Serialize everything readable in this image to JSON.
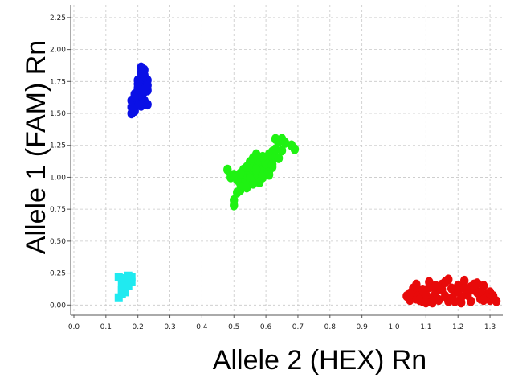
{
  "chart_data": {
    "type": "scatter",
    "title": "",
    "xlabel": "Allele 2 (HEX) Rn",
    "ylabel": "Allele 1 (FAM) Rn",
    "xlim": [
      -0.01,
      1.34
    ],
    "ylim": [
      -0.08,
      2.35
    ],
    "x_ticks": [
      "0.0",
      "0.1",
      "0.2",
      "0.3",
      "0.4",
      "0.5",
      "0.6",
      "0.7",
      "0.8",
      "0.9",
      "1.0",
      "1.1",
      "1.2",
      "1.3"
    ],
    "y_ticks": [
      "0.00",
      "0.25",
      "0.50",
      "0.75",
      "1.00",
      "1.25",
      "1.50",
      "1.75",
      "2.00",
      "2.25"
    ],
    "grid": true,
    "legend": "none",
    "series": [
      {
        "color": "#0a10e6",
        "marker": "circle",
        "x": [
          0.18,
          0.19,
          0.21,
          0.2,
          0.22,
          0.23,
          0.2,
          0.21,
          0.22,
          0.23,
          0.19,
          0.2,
          0.21,
          0.22,
          0.2,
          0.18,
          0.19,
          0.21,
          0.22,
          0.23,
          0.22,
          0.18,
          0.21,
          0.2,
          0.22,
          0.19,
          0.21,
          0.23,
          0.2,
          0.22
        ],
        "y": [
          1.5,
          1.52,
          1.56,
          1.58,
          1.6,
          1.57,
          1.64,
          1.66,
          1.67,
          1.68,
          1.62,
          1.7,
          1.72,
          1.74,
          1.76,
          1.6,
          1.65,
          1.78,
          1.8,
          1.76,
          1.84,
          1.55,
          1.86,
          1.69,
          1.7,
          1.63,
          1.82,
          1.72,
          1.73,
          1.79
        ]
      },
      {
        "color": "#1ff212",
        "marker": "circle",
        "x": [
          0.48,
          0.5,
          0.51,
          0.52,
          0.52,
          0.53,
          0.53,
          0.54,
          0.54,
          0.55,
          0.55,
          0.56,
          0.56,
          0.57,
          0.57,
          0.58,
          0.58,
          0.59,
          0.59,
          0.6,
          0.6,
          0.61,
          0.61,
          0.62,
          0.62,
          0.63,
          0.63,
          0.64,
          0.65,
          0.66,
          0.68,
          0.69,
          0.5,
          0.51,
          0.53,
          0.55,
          0.57,
          0.58,
          0.6,
          0.62,
          0.64,
          0.56,
          0.54,
          0.59,
          0.61,
          0.57,
          0.55,
          0.6,
          0.63,
          0.58,
          0.52,
          0.56,
          0.59,
          0.62,
          0.65,
          0.49,
          0.5,
          0.54,
          0.57,
          0.61
        ],
        "y": [
          1.06,
          0.82,
          0.88,
          0.9,
          0.95,
          0.93,
          1.0,
          0.97,
          1.02,
          1.0,
          1.05,
          1.03,
          1.08,
          1.04,
          1.1,
          1.07,
          1.12,
          1.09,
          1.13,
          1.1,
          1.15,
          1.12,
          1.18,
          1.14,
          1.2,
          1.16,
          1.22,
          1.28,
          1.3,
          1.27,
          1.25,
          1.22,
          0.78,
          0.98,
          1.06,
          1.12,
          1.0,
          0.96,
          1.04,
          1.08,
          1.15,
          1.15,
          0.92,
          1.0,
          1.05,
          1.18,
          0.99,
          1.11,
          1.3,
          1.05,
          1.03,
          0.95,
          1.16,
          1.1,
          1.21,
          1.0,
          1.02,
          1.08,
          1.06,
          1.02
        ]
      },
      {
        "color": "#e80a0a",
        "marker": "circle",
        "x": [
          1.04,
          1.05,
          1.06,
          1.07,
          1.08,
          1.09,
          1.1,
          1.11,
          1.12,
          1.13,
          1.14,
          1.15,
          1.16,
          1.17,
          1.18,
          1.19,
          1.2,
          1.21,
          1.22,
          1.23,
          1.24,
          1.25,
          1.26,
          1.27,
          1.28,
          1.29,
          1.3,
          1.32,
          1.06,
          1.09,
          1.12,
          1.15,
          1.18,
          1.21,
          1.24,
          1.27,
          1.3,
          1.08,
          1.11,
          1.14,
          1.17,
          1.2,
          1.23,
          1.26,
          1.29,
          1.13,
          1.16,
          1.19,
          1.22,
          1.25,
          1.1,
          1.07,
          1.28,
          1.05,
          1.31
        ],
        "y": [
          0.07,
          0.04,
          0.09,
          0.05,
          0.1,
          0.03,
          0.08,
          0.14,
          0.06,
          0.1,
          0.04,
          0.12,
          0.07,
          0.2,
          0.05,
          0.1,
          0.15,
          0.06,
          0.19,
          0.08,
          0.03,
          0.12,
          0.1,
          0.05,
          0.15,
          0.08,
          0.1,
          0.03,
          0.13,
          0.12,
          0.02,
          0.16,
          0.13,
          0.02,
          0.14,
          0.1,
          0.04,
          0.04,
          0.18,
          0.14,
          0.03,
          0.11,
          0.08,
          0.17,
          0.06,
          0.15,
          0.18,
          0.03,
          0.13,
          0.16,
          0.02,
          0.16,
          0.04,
          0.09,
          0.07
        ]
      },
      {
        "color": "#20eaf0",
        "marker": "square",
        "x": [
          0.14,
          0.15,
          0.15,
          0.16,
          0.16,
          0.17,
          0.18,
          0.14,
          0.15,
          0.16,
          0.17,
          0.15,
          0.16,
          0.18,
          0.17
        ],
        "y": [
          0.06,
          0.09,
          0.12,
          0.14,
          0.17,
          0.2,
          0.22,
          0.22,
          0.21,
          0.19,
          0.15,
          0.15,
          0.1,
          0.18,
          0.23
        ]
      }
    ]
  }
}
